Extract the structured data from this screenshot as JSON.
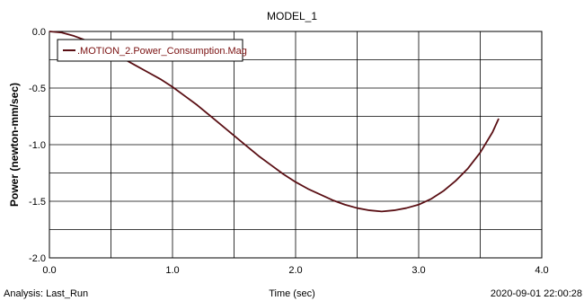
{
  "chart_data": {
    "type": "line",
    "title": "MODEL_1",
    "xlabel": "Time (sec)",
    "ylabel": "Power (newton-mm/sec)",
    "xlim": [
      0.0,
      4.0
    ],
    "ylim": [
      -2.0,
      0.0
    ],
    "x_ticks": [
      "0.0",
      "1.0",
      "2.0",
      "3.0",
      "4.0"
    ],
    "y_ticks": [
      "0.0",
      "-0.5",
      "-1.0",
      "-1.5",
      "-2.0"
    ],
    "grid": true,
    "legend_position": "top-left",
    "series": [
      {
        "name": ".MOTION_2.Power_Consumption.Mag",
        "color": "#5a0f14",
        "x": [
          0.0,
          0.1,
          0.2,
          0.3,
          0.4,
          0.5,
          0.6,
          0.7,
          0.8,
          0.9,
          1.0,
          1.1,
          1.2,
          1.3,
          1.4,
          1.5,
          1.6,
          1.7,
          1.8,
          1.9,
          2.0,
          2.1,
          2.2,
          2.3,
          2.4,
          2.5,
          2.6,
          2.7,
          2.8,
          2.9,
          3.0,
          3.1,
          3.2,
          3.3,
          3.4,
          3.5,
          3.6,
          3.65
        ],
        "y": [
          0.0,
          -0.01,
          -0.04,
          -0.08,
          -0.13,
          -0.18,
          -0.24,
          -0.3,
          -0.36,
          -0.42,
          -0.49,
          -0.57,
          -0.65,
          -0.74,
          -0.83,
          -0.92,
          -1.01,
          -1.1,
          -1.18,
          -1.26,
          -1.33,
          -1.39,
          -1.44,
          -1.49,
          -1.53,
          -1.56,
          -1.58,
          -1.59,
          -1.58,
          -1.56,
          -1.53,
          -1.48,
          -1.41,
          -1.32,
          -1.21,
          -1.07,
          -0.89,
          -0.77
        ]
      }
    ]
  },
  "footer": {
    "analysis": "Analysis:  Last_Run",
    "timestamp": "2020-09-01 22:00:28"
  }
}
